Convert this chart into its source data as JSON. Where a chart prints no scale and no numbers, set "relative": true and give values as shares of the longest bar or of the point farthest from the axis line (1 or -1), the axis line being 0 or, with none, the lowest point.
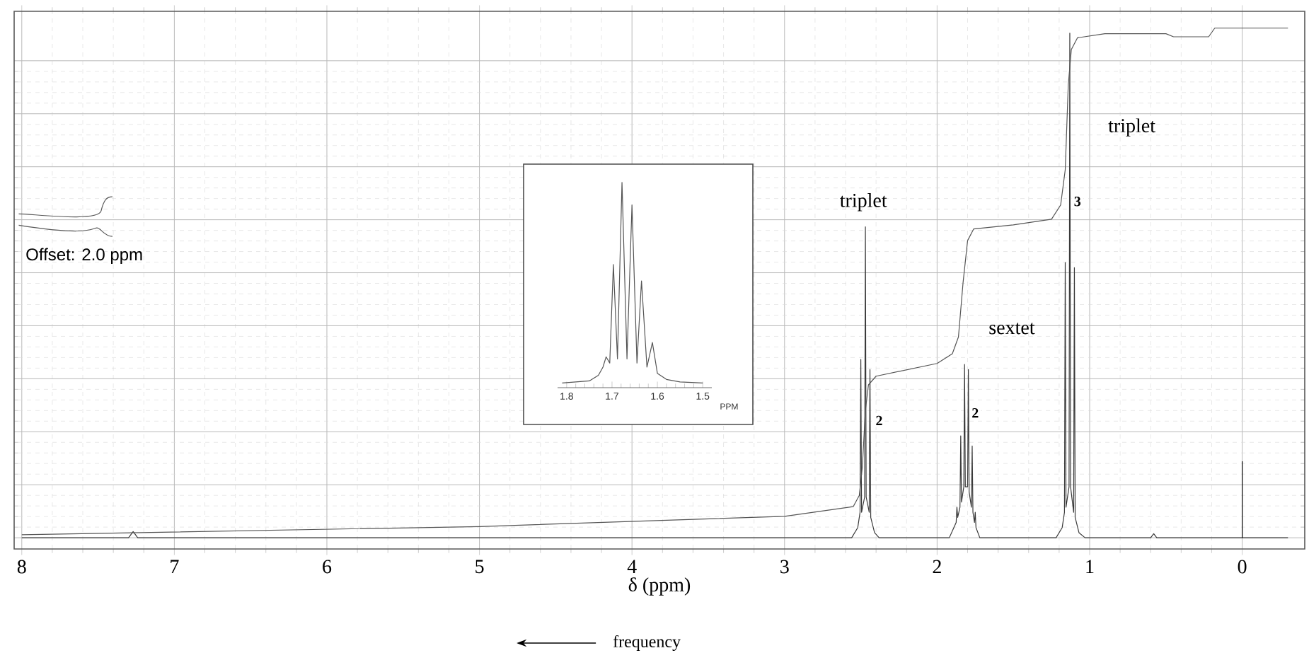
{
  "chart_data": [
    {
      "type": "line",
      "relative": true,
      "xlabel": "δ (ppm)",
      "xlim": [
        8.05,
        -0.41
      ],
      "xticks": [
        8,
        7,
        6,
        5,
        4,
        3,
        2,
        1,
        0
      ],
      "grid": true,
      "marker": "none",
      "line_style": "solid",
      "series": [
        {
          "color": "#3a3a3a",
          "x": [
            8.0,
            7.3,
            7.27,
            7.24,
            2.56,
            2.52,
            2.505,
            2.5,
            2.495,
            2.475,
            2.47,
            2.465,
            2.445,
            2.44,
            2.435,
            2.41,
            2.38,
            1.92,
            1.89,
            1.875,
            1.87,
            1.865,
            1.85,
            1.845,
            1.84,
            1.825,
            1.82,
            1.815,
            1.8,
            1.795,
            1.79,
            1.775,
            1.77,
            1.765,
            1.755,
            1.75,
            1.745,
            1.72,
            1.22,
            1.18,
            1.165,
            1.16,
            1.155,
            1.135,
            1.13,
            1.125,
            1.105,
            1.1,
            1.095,
            1.07,
            1.03,
            0.6,
            0.58,
            0.56,
            -0.3
          ],
          "values": [
            0,
            0,
            0.012,
            0,
            0,
            0.02,
            0.05,
            0.35,
            0.05,
            0.08,
            0.61,
            0.08,
            0.05,
            0.33,
            0.04,
            0.01,
            0,
            0,
            0.02,
            0.03,
            0.06,
            0.04,
            0.06,
            0.2,
            0.07,
            0.1,
            0.34,
            0.1,
            0.1,
            0.33,
            0.09,
            0.06,
            0.18,
            0.05,
            0.03,
            0.05,
            0.02,
            0,
            0,
            0.02,
            0.05,
            0.54,
            0.06,
            0.1,
            0.99,
            0.1,
            0.05,
            0.53,
            0.04,
            0.01,
            0,
            0,
            0.008,
            0,
            0
          ]
        },
        {
          "color": "#555555",
          "x": [
            8.0,
            5.0,
            3.0,
            2.55,
            2.51,
            2.49,
            2.47,
            2.45,
            2.4,
            2.0,
            1.9,
            1.86,
            1.83,
            1.8,
            1.76,
            1.5,
            1.25,
            1.19,
            1.16,
            1.14,
            1.12,
            1.08,
            0.9,
            0.5,
            0.45,
            0.22,
            0.18,
            -0.3
          ],
          "values": [
            0.006,
            0.022,
            0.042,
            0.061,
            0.083,
            0.139,
            0.25,
            0.3,
            0.317,
            0.342,
            0.361,
            0.394,
            0.5,
            0.583,
            0.606,
            0.614,
            0.625,
            0.653,
            0.722,
            0.889,
            0.958,
            0.981,
            0.989,
            0.989,
            0.983,
            0.983,
            1.0,
            1.0
          ]
        },
        {
          "color": "#000000",
          "x": [
            0,
            0
          ],
          "values": [
            0,
            0.15
          ]
        }
      ],
      "annotations": [
        "triplet",
        "sextet",
        "triplet",
        {
          "text": "2",
          "x": 2.38,
          "y": 0.23
        },
        {
          "text": "2",
          "x": 1.75,
          "y": 0.245
        },
        {
          "text": "3",
          "x": 1.08,
          "y": 0.66
        },
        "Offset: 2.0 ppm",
        "frequency"
      ]
    },
    {
      "type": "line",
      "relative": true,
      "xlabel": "PPM",
      "xlim": [
        1.82,
        1.48
      ],
      "xticks": [
        1.8,
        1.7,
        1.6,
        1.5
      ],
      "marker": "none",
      "line_style": "solid",
      "series": [
        {
          "color": "#555555",
          "x": [
            1.81,
            1.75,
            1.73,
            1.72,
            1.713,
            1.705,
            1.697,
            1.688,
            1.678,
            1.667,
            1.656,
            1.645,
            1.635,
            1.623,
            1.611,
            1.6,
            1.58,
            1.55,
            1.5
          ],
          "values": [
            0.023,
            0.033,
            0.06,
            0.1,
            0.15,
            0.12,
            0.6,
            0.14,
            1.0,
            0.14,
            0.89,
            0.12,
            0.52,
            0.1,
            0.22,
            0.07,
            0.04,
            0.028,
            0.023
          ]
        }
      ]
    }
  ]
}
